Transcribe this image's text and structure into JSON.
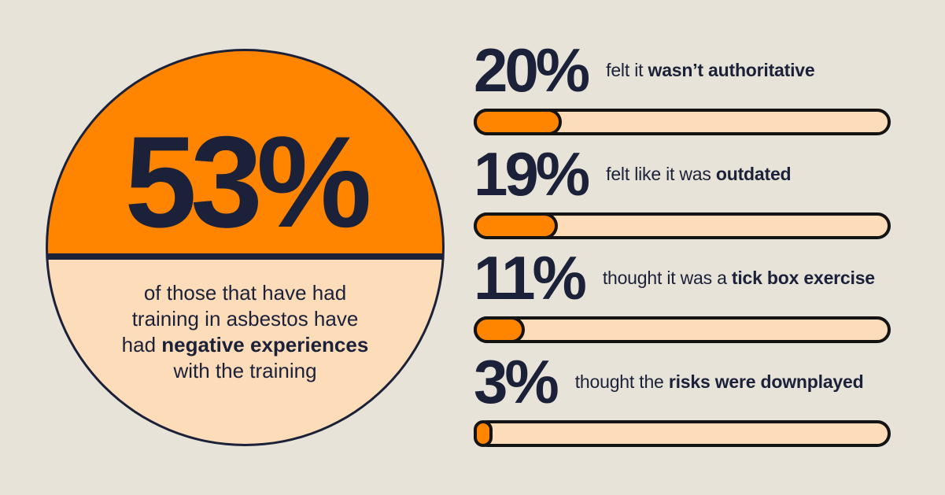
{
  "colors": {
    "background": "#E7E3D9",
    "orange": "#FF8500",
    "peach": "#FDDCBA",
    "navy": "#1B2139",
    "bar_outline": "#141414"
  },
  "circle": {
    "percent": "53%",
    "desc_pre": "of those that have had training in asbestos have had ",
    "desc_bold": "negative experiences",
    "desc_post": " with the training"
  },
  "bars": [
    {
      "pct": "20%",
      "value": 20,
      "label_pre": "felt it ",
      "label_bold": "wasn’t authoritative"
    },
    {
      "pct": "19%",
      "value": 19,
      "label_pre": "felt like it was ",
      "label_bold": "outdated"
    },
    {
      "pct": "11%",
      "value": 11,
      "label_pre": "thought it was a ",
      "label_bold": "tick box exercise"
    },
    {
      "pct": "3%",
      "value": 3,
      "label_pre": "thought the ",
      "label_bold": "risks were downplayed"
    }
  ],
  "chart_data": {
    "type": "bar",
    "orientation": "horizontal",
    "title": "",
    "categories": [
      "felt it wasn’t authoritative",
      "felt like it was outdated",
      "thought it was a tick box exercise",
      "thought the risks were downplayed"
    ],
    "values": [
      20,
      19,
      11,
      3
    ],
    "xlim": [
      0,
      100
    ],
    "grid": false,
    "legend": false,
    "highlight_stat": {
      "value": 53,
      "unit": "%",
      "label": "of those that have had training in asbestos have had negative experiences with the training"
    }
  }
}
